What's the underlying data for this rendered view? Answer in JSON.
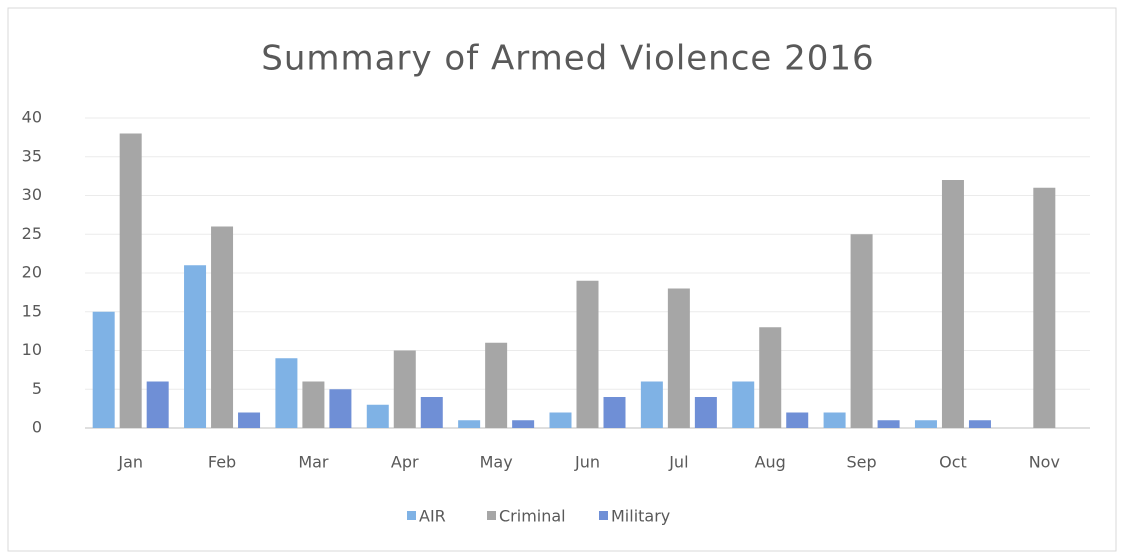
{
  "chart_data": {
    "type": "bar",
    "title": "Summary of Armed Violence 2016",
    "categories": [
      "Jan",
      "Feb",
      "Mar",
      "Apr",
      "May",
      "Jun",
      "Jul",
      "Aug",
      "Sep",
      "Oct",
      "Nov"
    ],
    "series": [
      {
        "name": "AIR",
        "color": "#7fb2e5",
        "values": [
          15,
          21,
          9,
          3,
          1,
          2,
          6,
          6,
          2,
          1,
          0
        ]
      },
      {
        "name": "Criminal",
        "color": "#a6a6a6",
        "values": [
          38,
          26,
          6,
          10,
          11,
          19,
          18,
          13,
          25,
          32,
          31
        ]
      },
      {
        "name": "Military",
        "color": "#6f8fd6",
        "values": [
          6,
          2,
          5,
          4,
          1,
          4,
          4,
          2,
          1,
          1,
          0
        ]
      }
    ],
    "ylim": [
      0,
      40
    ],
    "yticks": [
      0,
      5,
      10,
      15,
      20,
      25,
      30,
      35,
      40
    ],
    "grid": true,
    "legend": "bottom"
  }
}
